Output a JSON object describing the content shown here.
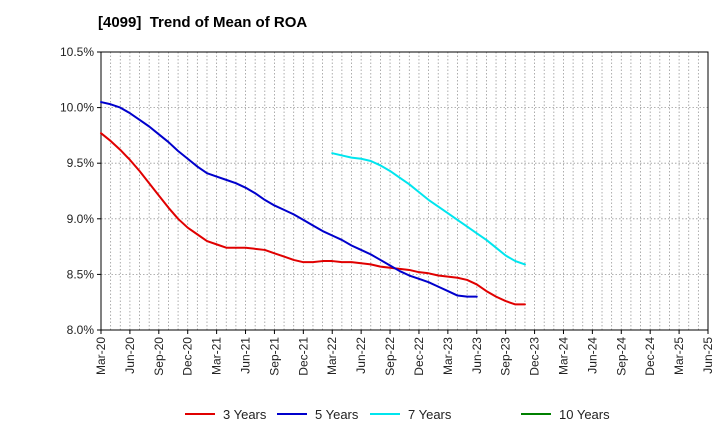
{
  "chart_data": {
    "type": "line",
    "title": "[4099]  Trend of Mean of ROA",
    "xlabel": "",
    "ylabel": "",
    "ylim": [
      8.0,
      10.5
    ],
    "yticks": [
      "8.0%",
      "8.5%",
      "9.0%",
      "9.5%",
      "10.0%",
      "10.5%"
    ],
    "ytick_values": [
      8.0,
      8.5,
      9.0,
      9.5,
      10.0,
      10.5
    ],
    "xticks": [
      "Mar-20",
      "Jun-20",
      "Sep-20",
      "Dec-20",
      "Mar-21",
      "Jun-21",
      "Sep-21",
      "Dec-21",
      "Mar-22",
      "Jun-22",
      "Sep-22",
      "Dec-22",
      "Mar-23",
      "Jun-23",
      "Sep-23",
      "Dec-23",
      "Mar-24",
      "Jun-24",
      "Sep-24",
      "Dec-24",
      "Mar-25",
      "Jun-25"
    ],
    "grid": true,
    "legend_position": "bottom",
    "series": [
      {
        "name": "3 Years",
        "color": "#e00000",
        "start_index": 0,
        "values": [
          9.77,
          9.7,
          9.62,
          9.53,
          9.43,
          9.32,
          9.21,
          9.1,
          9.0,
          8.92,
          8.86,
          8.8,
          8.77,
          8.74,
          8.74,
          8.74,
          8.73,
          8.72,
          8.69,
          8.66,
          8.63,
          8.61,
          8.61,
          8.62,
          8.62,
          8.61,
          8.61,
          8.6,
          8.59,
          8.57,
          8.56,
          8.55,
          8.54,
          8.52,
          8.51,
          8.49,
          8.48,
          8.47,
          8.45,
          8.41,
          8.35,
          8.3,
          8.26,
          8.23,
          8.23
        ]
      },
      {
        "name": "5 Years",
        "color": "#0000cc",
        "start_index": 0,
        "values": [
          10.05,
          10.03,
          10.0,
          9.95,
          9.89,
          9.83,
          9.76,
          9.69,
          9.61,
          9.54,
          9.47,
          9.41,
          9.38,
          9.35,
          9.32,
          9.28,
          9.23,
          9.17,
          9.12,
          9.08,
          9.04,
          8.99,
          8.94,
          8.89,
          8.85,
          8.81,
          8.76,
          8.72,
          8.68,
          8.63,
          8.58,
          8.53,
          8.49,
          8.46,
          8.43,
          8.39,
          8.35,
          8.31,
          8.3,
          8.3
        ]
      },
      {
        "name": "7 Years",
        "color": "#00e5ee",
        "start_index": 24,
        "values": [
          9.59,
          9.57,
          9.55,
          9.54,
          9.52,
          9.48,
          9.43,
          9.37,
          9.31,
          9.24,
          9.17,
          9.11,
          9.05,
          8.99,
          8.93,
          8.87,
          8.81,
          8.74,
          8.67,
          8.62,
          8.59
        ]
      },
      {
        "name": "10 Years",
        "color": "#008000",
        "start_index": 0,
        "values": []
      }
    ]
  }
}
